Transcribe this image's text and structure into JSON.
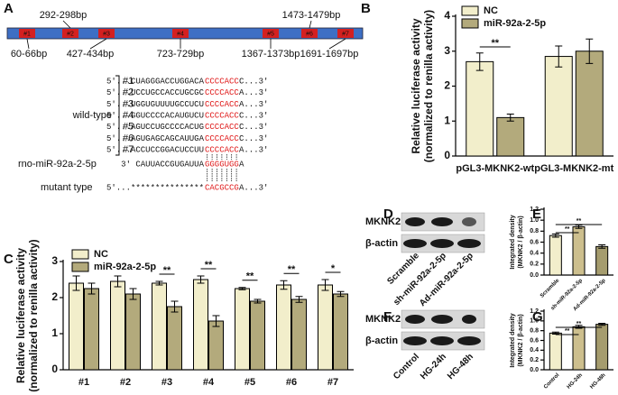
{
  "panels": [
    "A",
    "B",
    "C",
    "D",
    "E",
    "F",
    "G"
  ],
  "panel_a": {
    "sites": [
      {
        "box": "#1",
        "label": "60-66bp"
      },
      {
        "box": "#2",
        "label": "292-298bp"
      },
      {
        "box": "#3",
        "label": "427-434bp"
      },
      {
        "box": "#4",
        "label": "723-729bp"
      },
      {
        "box": "#5",
        "label": "1367-1373bp"
      },
      {
        "box": "#6",
        "label": "1473-1479bp"
      },
      {
        "box": "#7",
        "label": "1691-1697bp"
      }
    ],
    "wild_type_label": "wild-type",
    "rows": [
      {
        "prefix": "5′...CUAGGGACCUGGACA",
        "seed": "CCCCACC",
        "tail": "C...3′"
      },
      {
        "prefix": "5′...UCCUGCCACCUGCGC",
        "seed": "CCCCACC",
        "tail": "A...3′"
      },
      {
        "prefix": "5′...UGGUGUUUUGCCUCU",
        "seed": "CCCCACC",
        "tail": "A...3′"
      },
      {
        "prefix": "5′...GGUCCCCACAUGUCU",
        "seed": "CCCCACC",
        "tail": "C...3′"
      },
      {
        "prefix": "5′...AGUCCUGCCCCACUG",
        "seed": "CCCCACC",
        "tail": "C...3′"
      },
      {
        "prefix": "5′...AGUGAGCAGCAUUGA",
        "seed": "CCCCACC",
        "tail": "C...3′"
      },
      {
        "prefix": "5′...ACCUCCGGACUCCUU",
        "seed": "CCCCACC",
        "tail": "A...3′"
      }
    ],
    "mirna": {
      "label": "rno-miR-92a-2-5p",
      "prefix": "3′   CAUUACCGUGAUUA",
      "seed": "GGGGUGG",
      "tail": "A"
    },
    "mutant": {
      "label": "mutant type",
      "prefix": "5′...***************",
      "seed": "CACGCCG",
      "tail": "A...3′"
    }
  },
  "blots": [
    {
      "rows": [
        "MKNK2",
        "β-actin"
      ],
      "lanes": [
        "Scramble",
        "sh-miR-92a-2-5p",
        "Ad-miR-92a-2-5p"
      ]
    },
    {
      "rows": [
        "MKNK2",
        "β-actin"
      ],
      "lanes": [
        "Control",
        "HG-24h",
        "HG-48h"
      ]
    }
  ],
  "chart_data": [
    {
      "type": "bar",
      "ylabel": [
        "Relative luciferase activity",
        "(normalized to renilla activity)"
      ],
      "categories": [
        "pGL3-MKNK2-wt",
        "pGL3-MKNK2-mt"
      ],
      "series": [
        {
          "name": "NC",
          "color": "#f2eecb",
          "values": [
            2.7,
            2.85
          ],
          "errors": [
            0.25,
            0.3
          ]
        },
        {
          "name": "miR-92a-2-5p",
          "color": "#b3aa7c",
          "values": [
            1.1,
            3.0
          ],
          "errors": [
            0.1,
            0.35
          ]
        }
      ],
      "ylim": [
        0,
        4
      ],
      "yticks": [
        0,
        1,
        2,
        3,
        4
      ],
      "annotations": [
        "**"
      ]
    },
    {
      "type": "bar",
      "ylabel": [
        "Relative luciferase activity",
        "(normalized to renilla activity)"
      ],
      "categories": [
        "#1",
        "#2",
        "#3",
        "#4",
        "#5",
        "#6",
        "#7"
      ],
      "series": [
        {
          "name": "NC",
          "color": "#f2eecb",
          "values": [
            2.4,
            2.45,
            2.4,
            2.5,
            2.25,
            2.35,
            2.35
          ],
          "errors": [
            0.2,
            0.15,
            0.05,
            0.1,
            0.03,
            0.12,
            0.15
          ]
        },
        {
          "name": "miR-92a-2-5p",
          "color": "#b3aa7c",
          "values": [
            2.25,
            2.1,
            1.75,
            1.35,
            1.9,
            1.95,
            2.1
          ],
          "errors": [
            0.15,
            0.15,
            0.15,
            0.15,
            0.05,
            0.08,
            0.07
          ]
        }
      ],
      "ylim": [
        0,
        3
      ],
      "yticks": [
        0,
        1,
        2,
        3
      ],
      "annotations": [
        "**",
        "**",
        "**",
        "**",
        "*"
      ]
    },
    {
      "type": "bar",
      "ylabel": [
        "Integrated density",
        "(MKNK2 / β-actin)"
      ],
      "categories": [
        "Scramble",
        "sh-miR-92a-2-5p",
        "Ad-miR-92a-2-5p"
      ],
      "values": [
        0.72,
        0.88,
        0.52
      ],
      "errors": [
        0.03,
        0.03,
        0.03
      ],
      "colors": [
        "#f2eecb",
        "#cdbf8e",
        "#a59c6e"
      ],
      "ylim": [
        0,
        1.2
      ],
      "yticks": [
        {
          "value": 0,
          "label": "0.0"
        },
        0.2,
        0.4,
        0.6,
        0.8,
        {
          "value": 1,
          "label": "1.0"
        },
        1.2
      ],
      "annotations": [
        "**",
        "**"
      ]
    },
    {
      "type": "bar",
      "ylabel": [
        "Integrated density",
        "(MKNK2 / β-actin)"
      ],
      "categories": [
        "Control",
        "HG-24h",
        "HG-48h"
      ],
      "values": [
        0.75,
        0.88,
        0.93
      ],
      "errors": [
        0.02,
        0.03,
        0.02
      ],
      "colors": [
        "#f2eecb",
        "#cdbf8e",
        "#a59c6e"
      ],
      "ylim": [
        0,
        1.2
      ],
      "yticks": [
        {
          "value": 0,
          "label": "0.0"
        },
        0.2,
        0.4,
        0.6,
        0.8,
        {
          "value": 1,
          "label": "1.0"
        },
        1.2
      ],
      "annotations": [
        "**",
        "**"
      ]
    }
  ]
}
